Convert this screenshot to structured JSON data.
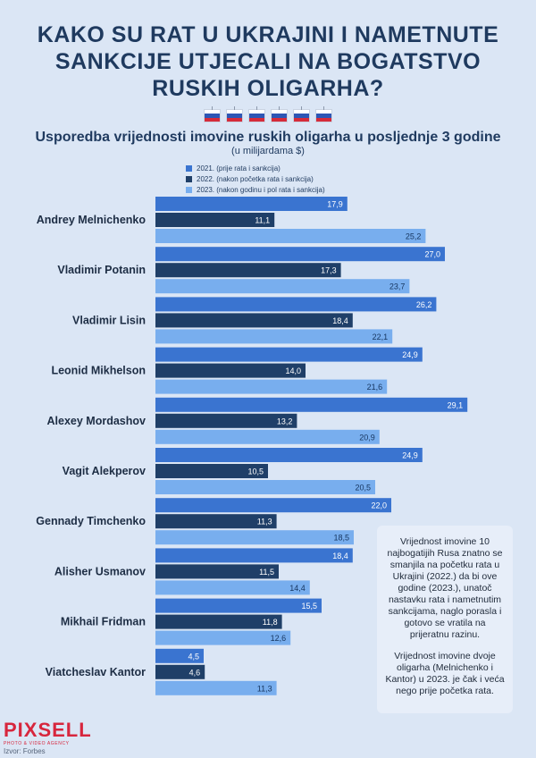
{
  "title_lines": [
    "KAKO SU RAT U UKRAJINI I NAMETNUTE",
    "SANKCIJE UTJECALI NA BOGATSTVO",
    "RUSKIH OLIGARHA?"
  ],
  "subtitle": "Usporedba vrijednosti imovine ruskih oligarha u posljednje 3 godine",
  "unit": "(u milijardama $)",
  "note": {
    "p1": "Vrijednost imovine 10 najbogatijih Rusa znatno se smanjila na početku rata u Ukrajini (2022.) da bi ove godine (2023.), unatoč nastavku rata i nametnutim sankcijama, naglo porasla i gotovo se vratila na prijeratnu razinu.",
    "p2": "Vrijednost imovine dvoje oligarha (Melnichenko i Kantor) u 2023. je čak i veća nego prije početka rata."
  },
  "logo": {
    "main": "PIXSELL",
    "sub": "PHOTO & VIDEO AGENCY"
  },
  "source": "Izvor: Forbes",
  "colors": {
    "s2021": "#3a74d0",
    "s2022": "#1f3f68",
    "s2023": "#78aeee"
  },
  "chart_data": {
    "type": "bar",
    "orientation": "horizontal",
    "categories": [
      "Andrey Melnichenko",
      "Vladimir Potanin",
      "Vladimir Lisin",
      "Leonid Mikhelson",
      "Alexey Mordashov",
      "Vagit Alekperov",
      "Gennady Timchenko",
      "Alisher Usmanov",
      "Mikhail Fridman",
      "Viatcheslav Kantor"
    ],
    "series": [
      {
        "name": "2021. (prije rata i sankcija)",
        "values": [
          17.9,
          27.0,
          26.2,
          24.9,
          29.1,
          24.9,
          22.0,
          18.4,
          15.5,
          4.5
        ],
        "labels": [
          "17,9",
          "27,0",
          "26,2",
          "24,9",
          "29,1",
          "24,9",
          "22,0",
          "18,4",
          "15,5",
          "4,5"
        ]
      },
      {
        "name": "2022. (nakon početka rata i sankcija)",
        "values": [
          11.1,
          17.3,
          18.4,
          14.0,
          13.2,
          10.5,
          11.3,
          11.5,
          11.8,
          4.6
        ],
        "labels": [
          "11,1",
          "17,3",
          "18,4",
          "14,0",
          "13,2",
          "10,5",
          "11,3",
          "11,5",
          "11,8",
          "4,6"
        ]
      },
      {
        "name": "2023. (nakon godinu i pol rata i sankcija)",
        "values": [
          25.2,
          23.7,
          22.1,
          21.6,
          20.9,
          20.5,
          18.5,
          14.4,
          12.6,
          11.3
        ],
        "labels": [
          "25,2",
          "23,7",
          "22,1",
          "21,6",
          "20,9",
          "20,5",
          "18,5",
          "14,4",
          "12,6",
          "11,3"
        ]
      }
    ],
    "legend_position": "top-left",
    "grid": false
  }
}
